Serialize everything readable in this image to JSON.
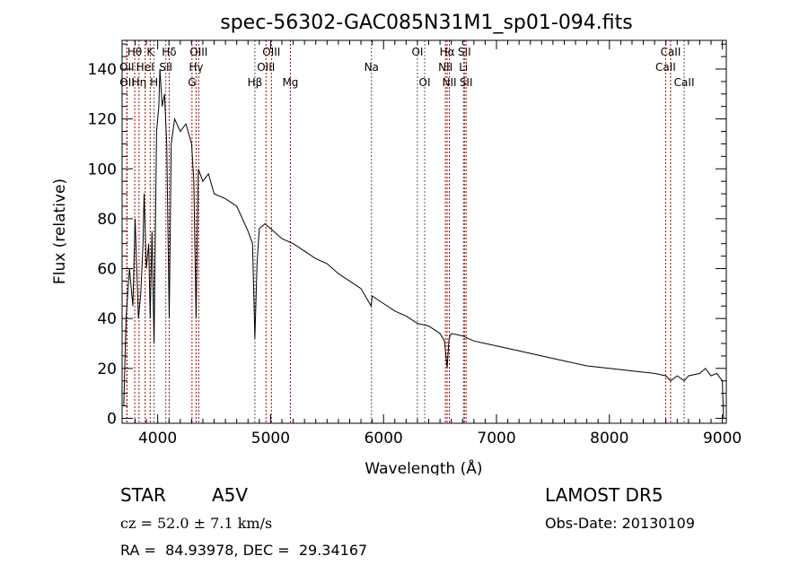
{
  "chart_data": {
    "type": "line",
    "title": "spec-56302-GAC085N31M1_sp01-094.fits",
    "xlabel": "Wavelength (Å)",
    "ylabel": "Flux (relative)",
    "xlim": [
      3685,
      9035
    ],
    "ylim": [
      -2,
      151.5
    ],
    "xticks": [
      4000,
      5000,
      6000,
      7000,
      8000,
      9000
    ],
    "yticks": [
      0,
      20,
      40,
      60,
      80,
      100,
      120,
      140
    ],
    "grid": false,
    "series": [
      {
        "name": "spectrum",
        "x": [
          3700,
          3720,
          3750,
          3780,
          3800,
          3830,
          3850,
          3870,
          3880,
          3900,
          3920,
          3934,
          3950,
          3968,
          3990,
          4010,
          4020,
          4040,
          4060,
          4080,
          4102,
          4120,
          4150,
          4200,
          4250,
          4300,
          4320,
          4340,
          4360,
          4400,
          4450,
          4500,
          4600,
          4700,
          4800,
          4840,
          4861,
          4880,
          4900,
          4950,
          5000,
          5100,
          5200,
          5300,
          5400,
          5500,
          5600,
          5700,
          5800,
          5890,
          5900,
          6000,
          6100,
          6200,
          6300,
          6400,
          6500,
          6540,
          6563,
          6580,
          6600,
          6700,
          6800,
          7000,
          7200,
          7400,
          7600,
          7800,
          8000,
          8200,
          8400,
          8500,
          8542,
          8600,
          8662,
          8700,
          8800,
          8850,
          8900,
          8950,
          9000,
          9010
        ],
        "y": [
          5,
          40,
          60,
          45,
          80,
          40,
          50,
          70,
          90,
          60,
          70,
          40,
          75,
          30,
          115,
          125,
          140,
          125,
          130,
          110,
          40,
          110,
          120,
          115,
          118,
          110,
          95,
          40,
          100,
          95,
          98,
          90,
          88,
          85,
          75,
          70,
          32,
          62,
          76,
          78,
          76,
          72,
          70,
          67,
          64,
          62,
          58,
          55,
          52,
          45,
          49,
          46,
          43,
          41,
          38,
          37,
          34,
          31,
          20,
          32,
          34,
          33,
          31,
          29,
          27,
          25,
          23,
          21,
          20,
          19,
          18,
          17,
          15,
          17,
          15,
          17,
          18,
          20,
          17,
          18,
          15,
          0
        ]
      }
    ],
    "annotations": [
      {
        "label": "Hθ",
        "wave": 3797,
        "row": 0,
        "color": "#aa0000"
      },
      {
        "label": "K",
        "wave": 3934,
        "row": 0,
        "color": "#aa0000"
      },
      {
        "label": "Hδ",
        "wave": 4102,
        "row": 0,
        "color": "#aa0000"
      },
      {
        "label": "OIII",
        "wave": 4363,
        "row": 0,
        "color": "#aa0000"
      },
      {
        "label": "OIII",
        "wave": 5007,
        "row": 0,
        "color": "#aa0000"
      },
      {
        "label": "OI",
        "wave": 6300,
        "row": 0,
        "color": "#555555"
      },
      {
        "label": "Hα",
        "wave": 6563,
        "row": 0,
        "color": "#aa0000"
      },
      {
        "label": "SII",
        "wave": 6716,
        "row": 0,
        "color": "#aa0000"
      },
      {
        "label": "CaII",
        "wave": 8542,
        "row": 0,
        "color": "#aa0000"
      },
      {
        "label": "OII",
        "wave": 3727,
        "row": 1,
        "color": "#aa0000"
      },
      {
        "label": "HeI",
        "wave": 3889,
        "row": 1,
        "color": "#aa0000"
      },
      {
        "label": "SII",
        "wave": 4072,
        "row": 1,
        "color": "#555555"
      },
      {
        "label": "Hγ",
        "wave": 4340,
        "row": 1,
        "color": "#aa0000"
      },
      {
        "label": "OIII",
        "wave": 4959,
        "row": 1,
        "color": "#aa0000"
      },
      {
        "label": "Na",
        "wave": 5893,
        "row": 1,
        "color": "#555555"
      },
      {
        "label": "NII",
        "wave": 6548,
        "row": 1,
        "color": "#aa0000"
      },
      {
        "label": "Li",
        "wave": 6708,
        "row": 1,
        "color": "#555555"
      },
      {
        "label": "CaII",
        "wave": 8498,
        "row": 1,
        "color": "#aa0000"
      },
      {
        "label": "OII",
        "wave": 3729,
        "row": 2,
        "color": "#aa0000"
      },
      {
        "label": "Hη",
        "wave": 3835,
        "row": 2,
        "color": "#aa0000"
      },
      {
        "label": "H",
        "wave": 3968,
        "row": 2,
        "color": "#555555"
      },
      {
        "label": "G",
        "wave": 4304,
        "row": 2,
        "color": "#aa0000"
      },
      {
        "label": "Hβ",
        "wave": 4861,
        "row": 2,
        "color": "#555555"
      },
      {
        "label": "Mg",
        "wave": 5175,
        "row": 2,
        "color": "#aa0000"
      },
      {
        "label": "OI",
        "wave": 6364,
        "row": 2,
        "color": "#555555"
      },
      {
        "label": "NII",
        "wave": 6583,
        "row": 2,
        "color": "#aa0000"
      },
      {
        "label": "SII",
        "wave": 6731,
        "row": 2,
        "color": "#aa0000"
      },
      {
        "label": "CaII",
        "wave": 8662,
        "row": 2,
        "color": "#555555"
      }
    ]
  },
  "info": {
    "object_type": "STAR",
    "subclass": "A5V",
    "survey": "LAMOST DR5",
    "cz": "cz = 52.0 ± 7.1 km/s",
    "obs_date": "Obs-Date: 20130109",
    "coords": "RA =  84.93978, DEC =  29.34167"
  }
}
